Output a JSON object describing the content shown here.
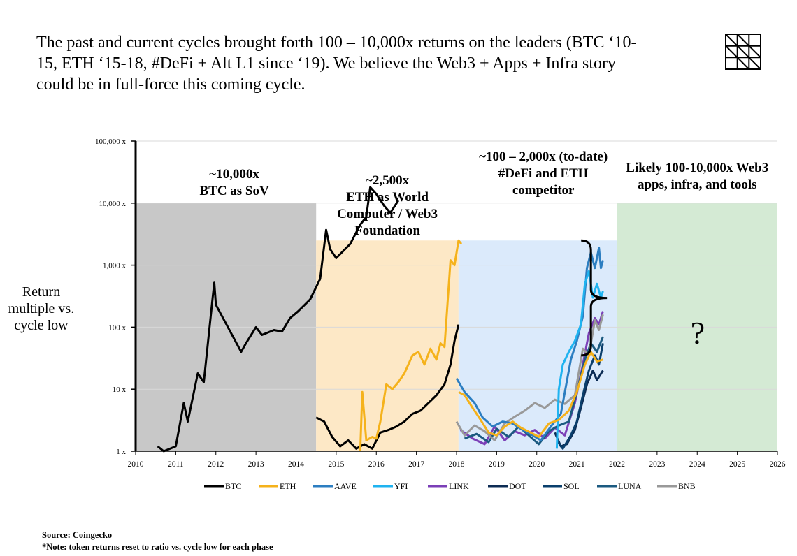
{
  "headline": "The past and current cycles brought forth 100 – 10,000x returns on the leaders (BTC ‘10-15, ETH ‘15-18, #DeFi + Alt L1 since ‘19). We believe the Web3 + Apps + Infra story could be in full-force this coming cycle.",
  "logo_icon": "grid-triangle-logo-icon",
  "y_axis_label": "Return multiple vs. cycle low",
  "source_line": "Source: Coingecko",
  "note_line": "*Note: token returns reset to ratio vs. cycle low for each phase",
  "question_mark": "?",
  "chart_data": {
    "type": "line",
    "y_scale": "log",
    "ylim": [
      1,
      100000
    ],
    "xlim": [
      2010,
      2026
    ],
    "y_ticks": [
      {
        "value": 1,
        "label": "1 x"
      },
      {
        "value": 10,
        "label": "10 x"
      },
      {
        "value": 100,
        "label": "100 x"
      },
      {
        "value": 1000,
        "label": "1,000 x"
      },
      {
        "value": 10000,
        "label": "10,000 x"
      },
      {
        "value": 100000,
        "label": "100,000 x"
      }
    ],
    "x_ticks": [
      2010,
      2011,
      2012,
      2013,
      2014,
      2015,
      2016,
      2017,
      2018,
      2019,
      2020,
      2021,
      2022,
      2023,
      2024,
      2025,
      2026
    ],
    "phases": [
      {
        "name": "btc-phase",
        "x0": 2010,
        "x1": 2014.5,
        "top": 10000,
        "color": "#c8c8c8",
        "label_lines": [
          "~10,000x",
          "BTC as SoV"
        ]
      },
      {
        "name": "eth-phase",
        "x0": 2014.5,
        "x1": 2018.05,
        "top": 2500,
        "color": "#fde8c6",
        "label_lines": [
          "~2,500x",
          "ETH as World",
          "Computer / Web3",
          "Foundation"
        ]
      },
      {
        "name": "defi-phase",
        "x0": 2018.05,
        "x1": 2022,
        "top": 2500,
        "color": "#dbeafb",
        "label_lines": [
          "~100 – 2,000x (to-date)",
          "#DeFi and ETH",
          "competitor"
        ]
      },
      {
        "name": "web3-phase",
        "x0": 2022,
        "x1": 2026,
        "top": 10000,
        "color": "#d4ead4",
        "label_lines": [
          "Likely 100-10,000x Web3",
          "apps, infra, and tools"
        ]
      }
    ],
    "bracket": {
      "x": 2021.35,
      "top": 2500,
      "bottom": 35,
      "tip_x": 2021.75
    },
    "series": [
      {
        "name": "BTC",
        "color": "#000000",
        "points": [
          [
            2010.55,
            1.2
          ],
          [
            2010.7,
            1
          ],
          [
            2011.0,
            1.2
          ],
          [
            2011.2,
            6
          ],
          [
            2011.3,
            3
          ],
          [
            2011.55,
            18
          ],
          [
            2011.7,
            13
          ],
          [
            2011.92,
            300
          ],
          [
            2011.96,
            520
          ],
          [
            2012.0,
            230
          ],
          [
            2012.3,
            100
          ],
          [
            2012.55,
            50
          ],
          [
            2012.63,
            40
          ],
          [
            2012.75,
            55
          ],
          [
            2013.0,
            100
          ],
          [
            2013.15,
            75
          ],
          [
            2013.45,
            90
          ],
          [
            2013.65,
            85
          ],
          [
            2013.85,
            140
          ],
          [
            2014.05,
            180
          ],
          [
            2014.35,
            280
          ],
          [
            2014.6,
            600
          ],
          [
            2014.75,
            3700
          ],
          [
            2014.85,
            1800
          ],
          [
            2015.0,
            1300
          ],
          [
            2015.35,
            2200
          ],
          [
            2015.6,
            4500
          ],
          [
            2015.75,
            6000
          ],
          [
            2015.85,
            18000
          ],
          [
            2016.0,
            14000
          ],
          [
            2016.2,
            9000
          ],
          [
            2016.35,
            7000
          ],
          [
            2016.55,
            11000
          ]
        ]
      },
      {
        "name": "BTC",
        "color": "#000000",
        "points": [
          [
            2014.5,
            3.5
          ],
          [
            2014.7,
            3
          ],
          [
            2014.9,
            1.7
          ],
          [
            2015.1,
            1.2
          ],
          [
            2015.3,
            1.5
          ],
          [
            2015.5,
            1.1
          ],
          [
            2015.7,
            1.3
          ],
          [
            2015.9,
            1.1
          ],
          [
            2016.1,
            2
          ],
          [
            2016.3,
            2.2
          ],
          [
            2016.5,
            2.5
          ],
          [
            2016.7,
            3
          ],
          [
            2016.9,
            4
          ],
          [
            2017.1,
            4.5
          ],
          [
            2017.3,
            6
          ],
          [
            2017.5,
            8
          ],
          [
            2017.7,
            12
          ],
          [
            2017.85,
            25
          ],
          [
            2017.95,
            60
          ],
          [
            2018.05,
            110
          ]
        ]
      },
      {
        "name": "ETH",
        "color": "#f5b21b",
        "points": [
          [
            2015.6,
            1
          ],
          [
            2015.65,
            9
          ],
          [
            2015.75,
            1.5
          ],
          [
            2015.9,
            1.7
          ],
          [
            2016.0,
            1.6
          ],
          [
            2016.1,
            3
          ],
          [
            2016.25,
            12
          ],
          [
            2016.4,
            10
          ],
          [
            2016.55,
            13
          ],
          [
            2016.7,
            18
          ],
          [
            2016.9,
            35
          ],
          [
            2017.05,
            40
          ],
          [
            2017.2,
            25
          ],
          [
            2017.35,
            45
          ],
          [
            2017.5,
            30
          ],
          [
            2017.6,
            55
          ],
          [
            2017.7,
            48
          ],
          [
            2017.85,
            1200
          ],
          [
            2017.95,
            1000
          ],
          [
            2018.05,
            2500
          ],
          [
            2018.12,
            2200
          ]
        ]
      },
      {
        "name": "LINK",
        "color": "#7b3fb7",
        "points": [
          [
            2018.1,
            2.2
          ],
          [
            2018.4,
            1.6
          ],
          [
            2018.7,
            1.3
          ],
          [
            2018.95,
            2.5
          ],
          [
            2019.2,
            1.5
          ],
          [
            2019.45,
            2.1
          ],
          [
            2019.7,
            1.8
          ],
          [
            2019.95,
            2.2
          ],
          [
            2020.2,
            1.6
          ],
          [
            2020.45,
            2.4
          ],
          [
            2020.7,
            1.8
          ],
          [
            2020.95,
            6
          ],
          [
            2021.15,
            25
          ],
          [
            2021.3,
            80
          ],
          [
            2021.45,
            140
          ],
          [
            2021.55,
            110
          ],
          [
            2021.65,
            180
          ]
        ]
      },
      {
        "name": "DOT",
        "color": "#0d2c54",
        "points": [
          [
            2020.45,
            2
          ],
          [
            2020.6,
            1.2
          ],
          [
            2020.75,
            1.3
          ],
          [
            2020.95,
            2.2
          ],
          [
            2021.1,
            5
          ],
          [
            2021.25,
            12
          ],
          [
            2021.4,
            20
          ],
          [
            2021.5,
            14
          ],
          [
            2021.65,
            20
          ]
        ]
      },
      {
        "name": "SOL",
        "color": "#0a3f6c",
        "points": [
          [
            2020.5,
            1.5
          ],
          [
            2020.65,
            1.1
          ],
          [
            2020.85,
            1.8
          ],
          [
            2021.0,
            3
          ],
          [
            2021.15,
            8
          ],
          [
            2021.3,
            20
          ],
          [
            2021.45,
            35
          ],
          [
            2021.55,
            25
          ],
          [
            2021.65,
            55
          ]
        ]
      },
      {
        "name": "LUNA",
        "color": "#1b5a80",
        "points": [
          [
            2018.2,
            1.6
          ],
          [
            2018.5,
            1.9
          ],
          [
            2018.8,
            1.4
          ],
          [
            2019.0,
            2.3
          ],
          [
            2019.3,
            1.7
          ],
          [
            2019.55,
            2.5
          ],
          [
            2019.8,
            1.8
          ],
          [
            2020.05,
            1.3
          ],
          [
            2020.3,
            2.1
          ],
          [
            2020.55,
            2.6
          ],
          [
            2020.8,
            3
          ],
          [
            2021.0,
            9
          ],
          [
            2021.2,
            30
          ],
          [
            2021.35,
            55
          ],
          [
            2021.5,
            40
          ],
          [
            2021.65,
            70
          ]
        ]
      },
      {
        "name": "BNB",
        "color": "#999999",
        "points": [
          [
            2018.0,
            3
          ],
          [
            2018.2,
            1.8
          ],
          [
            2018.45,
            2.6
          ],
          [
            2018.7,
            2.1
          ],
          [
            2018.95,
            1.5
          ],
          [
            2019.2,
            2.8
          ],
          [
            2019.45,
            3.6
          ],
          [
            2019.7,
            4.5
          ],
          [
            2019.95,
            6
          ],
          [
            2020.2,
            5
          ],
          [
            2020.45,
            6.8
          ],
          [
            2020.7,
            5.8
          ],
          [
            2020.95,
            8
          ],
          [
            2021.15,
            45
          ],
          [
            2021.3,
            35
          ],
          [
            2021.45,
            130
          ],
          [
            2021.55,
            90
          ],
          [
            2021.65,
            160
          ]
        ]
      },
      {
        "name": "AAVE",
        "color": "#2c7ec1",
        "points": [
          [
            2018.0,
            15
          ],
          [
            2018.2,
            9
          ],
          [
            2018.45,
            6
          ],
          [
            2018.65,
            3.5
          ],
          [
            2018.9,
            2.5
          ],
          [
            2019.15,
            3
          ],
          [
            2019.4,
            2.8
          ],
          [
            2019.65,
            2.2
          ],
          [
            2019.9,
            1.8
          ],
          [
            2020.1,
            1.5
          ],
          [
            2020.35,
            2.5
          ],
          [
            2020.6,
            4
          ],
          [
            2020.85,
            30
          ],
          [
            2021.0,
            60
          ],
          [
            2021.15,
            150
          ],
          [
            2021.25,
            900
          ],
          [
            2021.35,
            1600
          ],
          [
            2021.45,
            900
          ],
          [
            2021.55,
            1900
          ],
          [
            2021.6,
            900
          ],
          [
            2021.65,
            1200
          ]
        ]
      },
      {
        "name": "YFI",
        "color": "#1fb3f0",
        "points": [
          [
            2020.5,
            1.1
          ],
          [
            2020.55,
            10
          ],
          [
            2020.65,
            25
          ],
          [
            2020.8,
            40
          ],
          [
            2020.95,
            60
          ],
          [
            2021.1,
            110
          ],
          [
            2021.2,
            500
          ],
          [
            2021.3,
            800
          ],
          [
            2021.4,
            300
          ],
          [
            2021.5,
            500
          ],
          [
            2021.6,
            300
          ],
          [
            2021.65,
            380
          ]
        ]
      },
      {
        "name": "ETH",
        "color": "#f5b21b",
        "points": [
          [
            2018.05,
            9
          ],
          [
            2018.2,
            8
          ],
          [
            2018.4,
            5
          ],
          [
            2018.6,
            3.2
          ],
          [
            2018.8,
            2
          ],
          [
            2019.0,
            1.8
          ],
          [
            2019.2,
            2.5
          ],
          [
            2019.4,
            3
          ],
          [
            2019.6,
            2.4
          ],
          [
            2019.85,
            2
          ],
          [
            2020.05,
            1.7
          ],
          [
            2020.3,
            2.8
          ],
          [
            2020.55,
            3.2
          ],
          [
            2020.8,
            4.5
          ],
          [
            2021.0,
            9
          ],
          [
            2021.2,
            25
          ],
          [
            2021.35,
            40
          ],
          [
            2021.5,
            28
          ],
          [
            2021.65,
            30
          ]
        ]
      }
    ],
    "legend": [
      {
        "name": "BTC",
        "color": "#000000"
      },
      {
        "name": "ETH",
        "color": "#f5b21b"
      },
      {
        "name": "AAVE",
        "color": "#2c7ec1"
      },
      {
        "name": "YFI",
        "color": "#1fb3f0"
      },
      {
        "name": "LINK",
        "color": "#7b3fb7"
      },
      {
        "name": "DOT",
        "color": "#0d2c54"
      },
      {
        "name": "SOL",
        "color": "#0a3f6c"
      },
      {
        "name": "LUNA",
        "color": "#1b5a80"
      },
      {
        "name": "BNB",
        "color": "#999999"
      }
    ]
  }
}
